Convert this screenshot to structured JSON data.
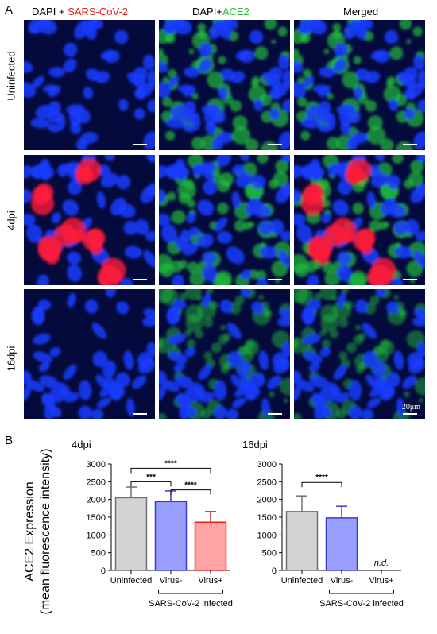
{
  "panel_a": {
    "letter": "A",
    "headers": {
      "col1_prefix": "DAPI + ",
      "col1_marker": "SARS-CoV-2",
      "col2_prefix": "DAPI+",
      "col2_marker": "ACE2",
      "col3": "Merged"
    },
    "rows": [
      "Uninfected",
      "4dpi",
      "16dpi"
    ],
    "scale_label": "20μm",
    "colors": {
      "dapi": "#1a3cff",
      "sars": "#ff1a3a",
      "ace2": "#22c43a",
      "background": "#050a3c"
    }
  },
  "panel_b": {
    "letter": "B",
    "y_axis_label_line1": "ACE2 Expression",
    "y_axis_label_line2": "(mean fluorescence intensity)"
  },
  "chart_data": [
    {
      "type": "bar",
      "title": "4dpi",
      "categories": [
        "Uninfected",
        "Virus-",
        "Virus+"
      ],
      "values": [
        2050,
        1940,
        1360
      ],
      "errors": [
        300,
        300,
        300
      ],
      "colors": [
        "#d3d3d3",
        "#9aa0ff",
        "#ffa3a3"
      ],
      "edge_colors": [
        "#707070",
        "#3a3acc",
        "#e8201c"
      ],
      "ylim": [
        0,
        3000
      ],
      "yticks": [
        0,
        500,
        1000,
        1500,
        2000,
        2500,
        3000
      ],
      "group_label": "SARS-CoV-2 infected",
      "significance": [
        {
          "from": 0,
          "to": 1,
          "label": "***"
        },
        {
          "from": 0,
          "to": 2,
          "label": "****"
        },
        {
          "from": 1,
          "to": 2,
          "label": "****"
        }
      ],
      "annotations": []
    },
    {
      "type": "bar",
      "title": "16dpi",
      "categories": [
        "Uninfected",
        "Virus-",
        "Virus+"
      ],
      "values": [
        1660,
        1480,
        null
      ],
      "errors": [
        440,
        330,
        null
      ],
      "colors": [
        "#d3d3d3",
        "#9aa0ff",
        "#ffa3a3"
      ],
      "edge_colors": [
        "#707070",
        "#3a3acc",
        "#e8201c"
      ],
      "ylim": [
        0,
        3000
      ],
      "yticks": [
        0,
        500,
        1000,
        1500,
        2000,
        2500,
        3000
      ],
      "group_label": "SARS-CoV-2 infected",
      "significance": [
        {
          "from": 0,
          "to": 1,
          "label": "****"
        }
      ],
      "annotations": [
        {
          "category": 2,
          "text": "n.d."
        }
      ]
    }
  ]
}
